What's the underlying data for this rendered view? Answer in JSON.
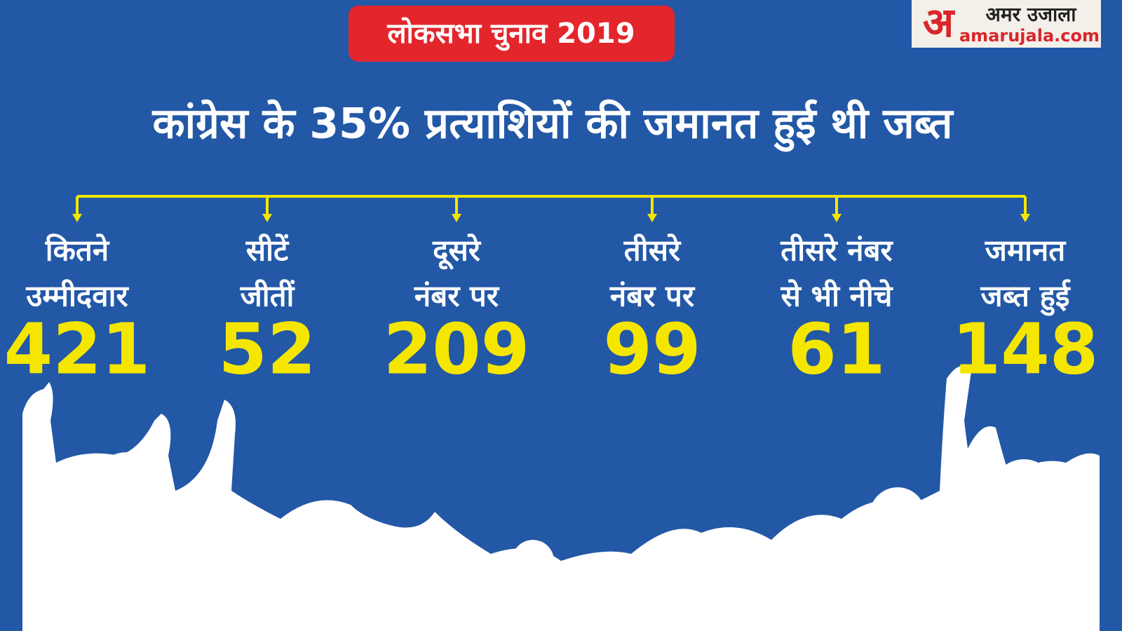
{
  "header": {
    "tag": "लोकसभा चुनाव 2019",
    "title": "कांग्रेस के 35% प्रत्याशियों की जमानत हुई थी जब्त"
  },
  "logo": {
    "mark": "अ",
    "name": "अमर उजाला",
    "site": "amarujala.com"
  },
  "items": [
    {
      "label": [
        "कितने",
        "उम्मीदवार"
      ],
      "value": 421
    },
    {
      "label": [
        "सीटें",
        "जीतीं"
      ],
      "value": 52
    },
    {
      "label": [
        "दूसरे",
        "नंबर पर"
      ],
      "value": 209
    },
    {
      "label": [
        "तीसरे",
        "नंबर पर"
      ],
      "value": 99
    },
    {
      "label": [
        "तीसरे नंबर",
        "से भी नीचे"
      ],
      "value": 61
    },
    {
      "label": [
        "जमानत",
        "जब्त हुई"
      ],
      "value": 148
    }
  ]
}
